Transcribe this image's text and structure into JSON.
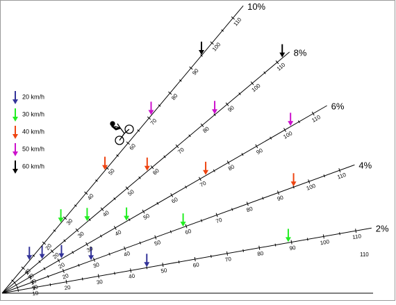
{
  "legend": [
    {
      "label": "20 km/h",
      "color": "#333399"
    },
    {
      "label": "30 km/h",
      "color": "#22ee22"
    },
    {
      "label": "40 km/h",
      "color": "#ee4411"
    },
    {
      "label": "50 km/h",
      "color": "#cc11cc"
    },
    {
      "label": "60 km/h",
      "color": "#000000"
    }
  ],
  "rays": [
    {
      "label": "2%",
      "ticks": [
        10,
        20,
        30,
        40,
        50,
        60,
        70,
        80,
        90,
        100,
        110
      ],
      "arrows": [
        45,
        89
      ]
    },
    {
      "label": "4%",
      "ticks": [
        10,
        20,
        30,
        40,
        50,
        60,
        70,
        80,
        90,
        100,
        110
      ],
      "arrows": [
        29,
        59,
        95
      ]
    },
    {
      "label": "6%",
      "ticks": [
        10,
        20,
        30,
        40,
        50,
        60,
        70,
        80,
        90,
        100,
        110
      ],
      "arrows": [
        21,
        44,
        72,
        102
      ]
    },
    {
      "label": "8%",
      "ticks": [
        10,
        20,
        30,
        40,
        50,
        60,
        70,
        80,
        90,
        100,
        110
      ],
      "arrows": [
        16,
        34,
        58,
        85,
        112
      ]
    },
    {
      "label": "10%",
      "ticks": [
        10,
        20,
        30,
        40,
        50,
        60,
        70,
        80,
        90,
        100,
        110
      ],
      "arrows": [
        13,
        28,
        49,
        71,
        95
      ]
    }
  ],
  "extra_label": "110"
}
